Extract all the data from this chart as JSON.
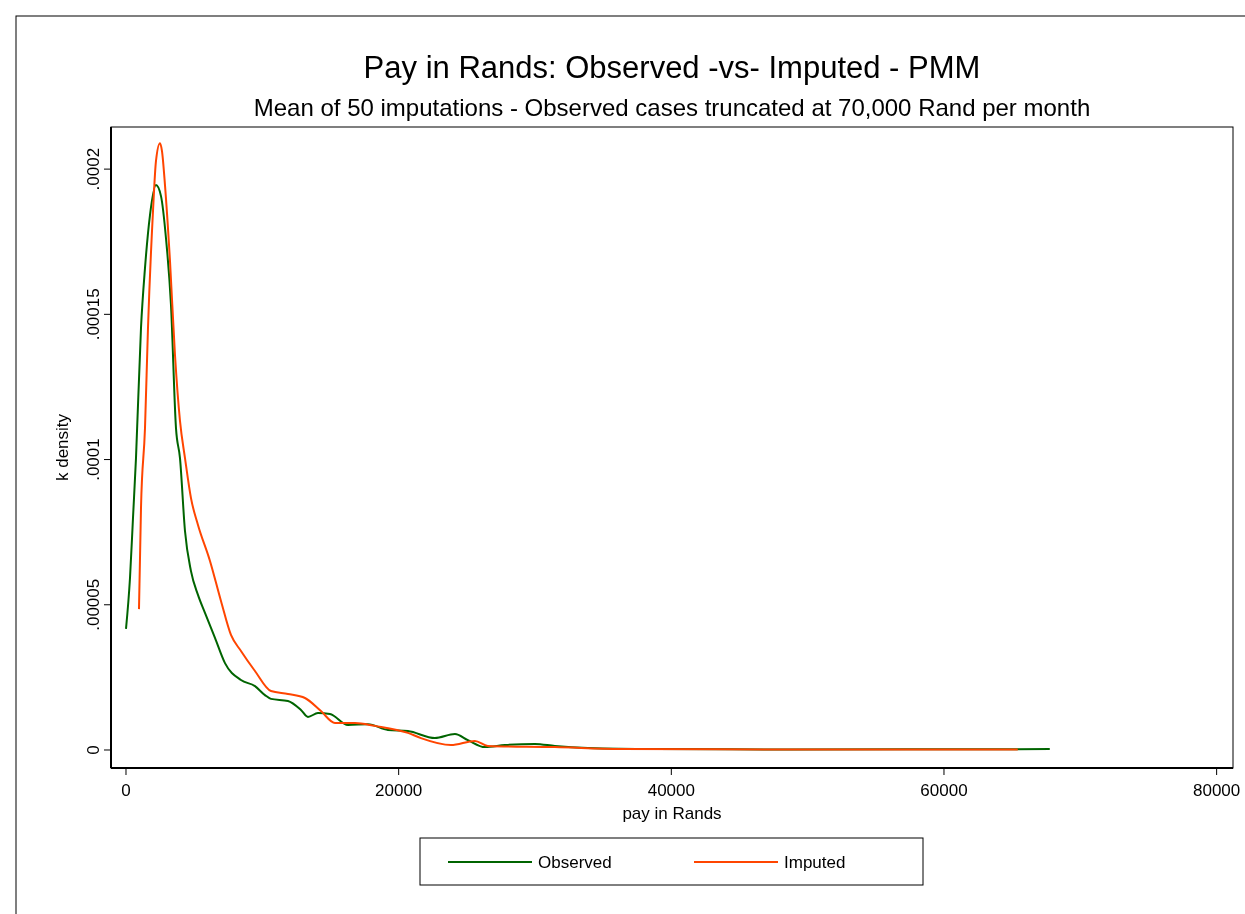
{
  "chart_data": {
    "type": "line",
    "title": "Pay in Rands: Observed -vs- Imputed - PMM",
    "subtitle": "Mean of 50 imputations - Observed cases truncated at 70,000 Rand per month",
    "xlabel": "pay in Rands",
    "ylabel": "k density",
    "xlim": [
      -1100,
      81200
    ],
    "xticks": [
      0,
      20000,
      40000,
      60000,
      80000
    ],
    "ylim": [
      -6.2e-06,
      0.0002145
    ],
    "yticks": [
      0,
      {
        "value": 5e-05,
        "label": ".00005"
      },
      {
        "value": 0.0001,
        "label": ".0001"
      },
      {
        "value": 0.00015,
        "label": ".00015"
      },
      {
        "value": 0.0002,
        "label": ".0002"
      }
    ],
    "grid": false,
    "legend": "bottom",
    "marker": "none",
    "line_style": "solid",
    "series": [
      {
        "name": "Observed",
        "color": "#006400",
        "x": [
          0,
          293,
          513,
          733,
          1100,
          1393,
          1760,
          2200,
          2567,
          2933,
          3300,
          3667,
          3960,
          4327,
          4767,
          5280,
          5793,
          6527,
          7260,
          8433,
          9460,
          10193,
          10633,
          11880,
          12833,
          13347,
          14080,
          14960,
          16280,
          17747,
          19213,
          20680,
          22660,
          24127,
          25080,
          26327,
          27793,
          29993,
          31460,
          33880,
          38793,
          48547,
          67760
        ],
        "values": [
          4.17e-05,
          5.92e-05,
          7.99e-05,
          0.0001005,
          0.0001453,
          0.0001659,
          0.0001842,
          0.0001945,
          0.0001907,
          0.0001762,
          0.0001532,
          0.0001108,
          0.0001005,
          7.54e-05,
          6.16e-05,
          5.34e-05,
          4.72e-05,
          3.86e-05,
          2.99e-05,
          2.41e-05,
          2.2e-05,
          1.89e-05,
          1.76e-05,
          1.69e-05,
          1.38e-05,
          1.14e-05,
          1.27e-05,
          1.24e-05,
          8.6e-06,
          8.9e-06,
          6.9e-06,
          6.5e-06,
          4.1e-06,
          5.5e-06,
          3.4e-06,
          1e-06,
          1.7e-06,
          2.1e-06,
          1.4e-06,
          7e-07,
          3e-07,
          2e-07,
          3e-07
        ]
      },
      {
        "name": "Imputed",
        "color": "#ff4500",
        "x": [
          953,
          1100,
          1393,
          1613,
          1980,
          2200,
          2493,
          2640,
          2860,
          3227,
          3593,
          3960,
          4327,
          4767,
          5280,
          6160,
          6967,
          7700,
          8433,
          9460,
          10633,
          11880,
          13127,
          14300,
          15327,
          16793,
          18260,
          20680,
          21633,
          23833,
          25593,
          26547,
          31460,
          36300,
          48547,
          65413
        ],
        "values": [
          4.85e-05,
          8.33e-05,
          0.0001108,
          0.0001453,
          0.0001855,
          0.0002028,
          0.0002089,
          0.0002062,
          0.0001945,
          0.0001683,
          0.000136,
          0.0001133,
          0.0001005,
          8.67e-05,
          7.75e-05,
          6.51e-05,
          5.13e-05,
          3.96e-05,
          3.41e-05,
          2.72e-05,
          2.03e-05,
          1.93e-05,
          1.79e-05,
          1.34e-05,
          9.3e-06,
          9.3e-06,
          8.3e-06,
          5.9e-06,
          4.1e-06,
          1.7e-06,
          3.1e-06,
          1.4e-06,
          1e-06,
          3e-07,
          2e-07,
          2e-07
        ]
      }
    ]
  }
}
